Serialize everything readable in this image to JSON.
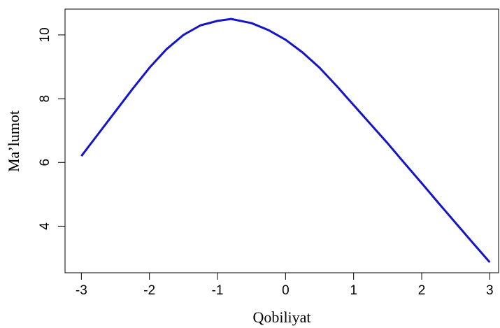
{
  "chart_data": {
    "type": "line",
    "x_label": "Qobiliyat",
    "y_label": "Ma’lumot",
    "x": [
      -3,
      -2.75,
      -2.5,
      -2.25,
      -2,
      -1.75,
      -1.5,
      -1.25,
      -1,
      -0.8,
      -0.5,
      -0.25,
      0,
      0.25,
      0.5,
      0.75,
      1,
      1.25,
      1.5,
      1.75,
      2,
      2.25,
      2.5,
      2.75,
      3
    ],
    "series": [
      {
        "color": "#1414c8",
        "values": [
          6.2,
          6.9,
          7.6,
          8.3,
          8.97,
          9.55,
          10.0,
          10.3,
          10.44,
          10.5,
          10.37,
          10.15,
          9.85,
          9.45,
          8.97,
          8.4,
          7.8,
          7.2,
          6.6,
          5.97,
          5.35,
          4.72,
          4.1,
          3.48,
          2.87
        ]
      }
    ],
    "xlim": [
      -3.24,
      3.13
    ],
    "ylim": [
      2.54,
      10.81
    ],
    "xticks": [
      -3,
      -2,
      -1,
      0,
      1,
      2,
      3
    ],
    "yticks": [
      4,
      6,
      8,
      10
    ]
  }
}
